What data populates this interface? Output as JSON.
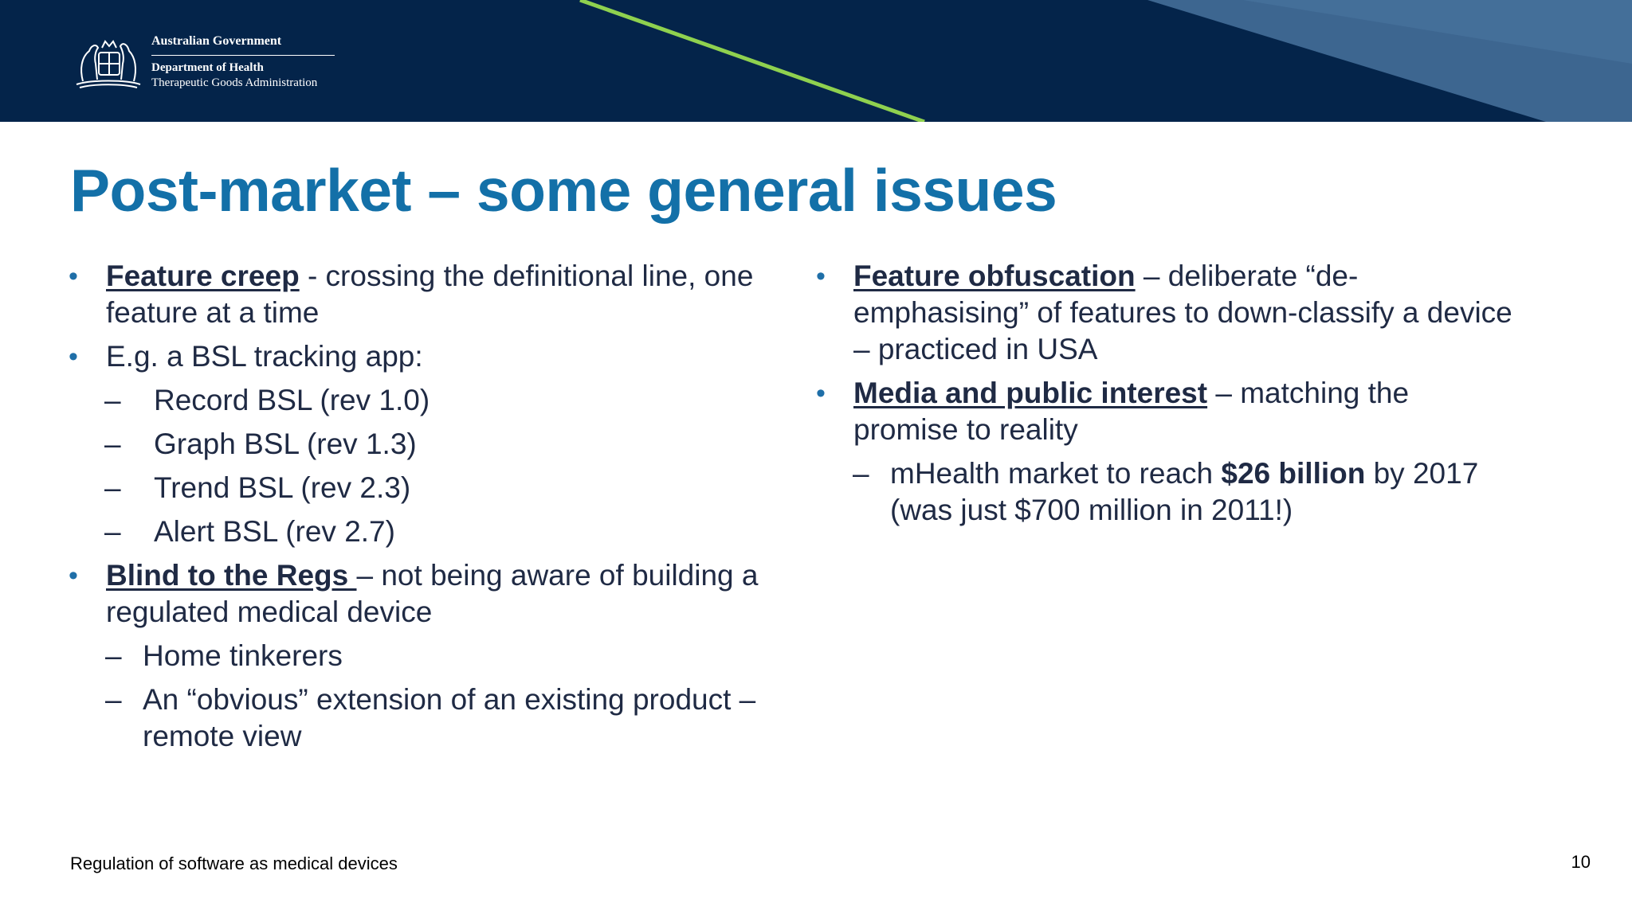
{
  "header": {
    "gov_name": "Australian Government",
    "department": "Department of Health",
    "agency": "Therapeutic Goods Administration",
    "icons": [
      "coat-of-arms-icon"
    ],
    "colors": {
      "navy": "#04244a",
      "accent_green": "#8fd14f",
      "steel_blue": "#3d6690"
    }
  },
  "slide": {
    "title": "Post-market – some general issues",
    "left": {
      "b1_key": "Feature creep",
      "b1_rest": " - crossing the definitional line, one feature at a time",
      "b2_text": "E.g. a BSL tracking app:",
      "sub_revs": [
        "Record BSL (rev 1.0)",
        "Graph BSL (rev 1.3)",
        "Trend BSL (rev 2.3)",
        "Alert BSL (rev 2.7)"
      ],
      "b3_key": "Blind to the Regs ",
      "b3_rest": "– not being aware of building a regulated medical device",
      "sub_b3": [
        "Home tinkerers",
        "An “obvious” extension of an existing product – remote view"
      ]
    },
    "right": {
      "b1_key": "Feature obfuscation",
      "b1_rest": " – deliberate “de-emphasising” of features to down-classify a device – practiced in USA",
      "b2_key": "Media and public interest",
      "b2_rest": " – matching the promise to reality",
      "sub1_pre": "mHealth market to reach ",
      "sub1_bold": "$26 billion",
      "sub1_post": " by 2017 (was just $700 million in 2011!)"
    },
    "bullet_char": "•",
    "dash_char": "–"
  },
  "footer": {
    "text": "Regulation of software as medical devices",
    "page": "10"
  },
  "colors": {
    "title": "#1370a8",
    "body_text": "#1f2a44",
    "bullet": "#1f6fa8"
  }
}
